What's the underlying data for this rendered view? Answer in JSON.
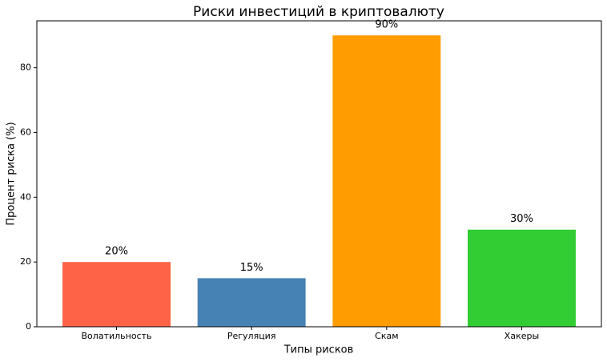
{
  "chart_data": {
    "type": "bar",
    "title": "Риски инвестиций в криптовалюту",
    "xlabel": "Типы рисков",
    "ylabel": "Процент риска (%)",
    "categories": [
      "Волатильность",
      "Регуляция",
      "Скам",
      "Хакеры"
    ],
    "values": [
      20,
      15,
      90,
      30
    ],
    "value_labels": [
      "20%",
      "15%",
      "90%",
      "30%"
    ],
    "colors": [
      "#ff6347",
      "#4682b4",
      "#ff9c00",
      "#32cd32"
    ],
    "ylim": [
      0,
      94.5
    ],
    "yticks": [
      0,
      20,
      40,
      60,
      80
    ],
    "grid": false
  }
}
